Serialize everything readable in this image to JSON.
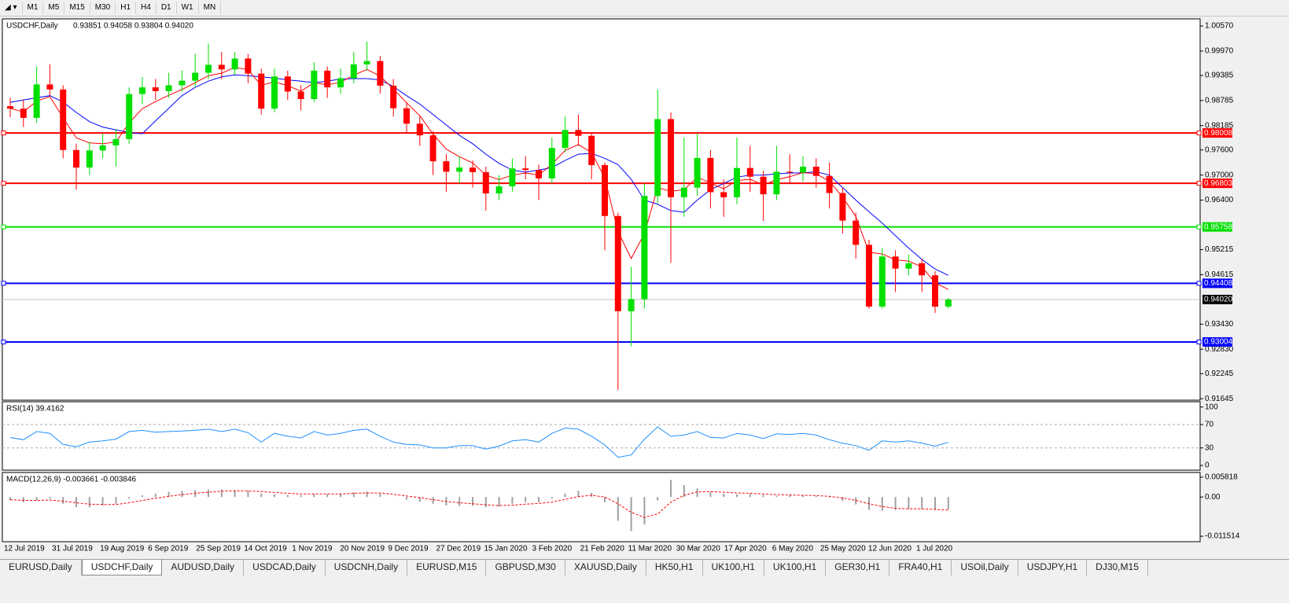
{
  "toolbar": {
    "timeframes": [
      "M1",
      "M5",
      "M15",
      "M30",
      "H1",
      "H4",
      "D1",
      "W1",
      "MN"
    ]
  },
  "chart_data": [
    {
      "type": "candlestick",
      "title": "USDCHF,Daily",
      "ohlc_text": "0.93851 0.94058 0.93804 0.94020",
      "up_color": "#00e000",
      "down_color": "#ff0000",
      "ylim": [
        0.9161,
        1.0074
      ],
      "yticks": [
        {
          "value": 1.0057,
          "label": "1.00570"
        },
        {
          "value": 0.9997,
          "label": "0.99970"
        },
        0.99385,
        0.98785,
        0.98185,
        {
          "value": 0.976,
          "label": "0.97600"
        },
        {
          "value": 0.97,
          "label": "0.97000"
        },
        {
          "value": 0.964,
          "label": "0.96400"
        },
        0.95215,
        0.94615,
        {
          "value": 0.9343,
          "label": "0.93430"
        },
        {
          "value": 0.9283,
          "label": "0.92830"
        },
        0.92245,
        0.91645
      ],
      "candles": [
        [
          0.9865,
          0.9885,
          0.9839,
          0.9859
        ],
        [
          0.9859,
          0.988,
          0.9815,
          0.9837
        ],
        [
          0.9837,
          0.996,
          0.9825,
          0.9917
        ],
        [
          0.9917,
          0.9965,
          0.989,
          0.9905
        ],
        [
          0.9905,
          0.9915,
          0.974,
          0.976
        ],
        [
          0.976,
          0.9775,
          0.9665,
          0.9718
        ],
        [
          0.9718,
          0.978,
          0.97,
          0.9759
        ],
        [
          0.9759,
          0.98,
          0.974,
          0.9771
        ],
        [
          0.9771,
          0.981,
          0.972,
          0.9786
        ],
        [
          0.9786,
          0.991,
          0.9775,
          0.9894
        ],
        [
          0.9894,
          0.9935,
          0.987,
          0.991
        ],
        [
          0.991,
          0.993,
          0.988,
          0.9901
        ],
        [
          0.9901,
          0.9945,
          0.9885,
          0.9915
        ],
        [
          0.9915,
          0.995,
          0.99,
          0.9926
        ],
        [
          0.9926,
          0.999,
          0.991,
          0.9945
        ],
        [
          0.9945,
          1.0015,
          0.993,
          0.9964
        ],
        [
          0.9964,
          0.9995,
          0.993,
          0.9953
        ],
        [
          0.9953,
          0.9995,
          0.994,
          0.9979
        ],
        [
          0.9979,
          0.999,
          0.992,
          0.9943
        ],
        [
          0.9943,
          0.9955,
          0.9845,
          0.9859
        ],
        [
          0.9859,
          0.9955,
          0.985,
          0.9936
        ],
        [
          0.9936,
          0.995,
          0.988,
          0.99
        ],
        [
          0.99,
          0.9915,
          0.9855,
          0.9882
        ],
        [
          0.9882,
          0.997,
          0.9875,
          0.995
        ],
        [
          0.995,
          0.996,
          0.9885,
          0.991
        ],
        [
          0.991,
          0.9955,
          0.9895,
          0.9932
        ],
        [
          0.9932,
          0.9995,
          0.992,
          0.9965
        ],
        [
          0.9965,
          1.002,
          0.995,
          0.9973
        ],
        [
          0.9973,
          0.9985,
          0.9895,
          0.9914
        ],
        [
          0.9914,
          0.993,
          0.984,
          0.986
        ],
        [
          0.986,
          0.9875,
          0.98,
          0.9823
        ],
        [
          0.9823,
          0.984,
          0.977,
          0.9795
        ],
        [
          0.9795,
          0.9805,
          0.97,
          0.9733
        ],
        [
          0.9733,
          0.975,
          0.966,
          0.9708
        ],
        [
          0.9708,
          0.9745,
          0.968,
          0.9718
        ],
        [
          0.9718,
          0.9735,
          0.967,
          0.9707
        ],
        [
          0.9707,
          0.972,
          0.9615,
          0.9656
        ],
        [
          0.9656,
          0.97,
          0.964,
          0.9673
        ],
        [
          0.9673,
          0.974,
          0.966,
          0.9716
        ],
        [
          0.9716,
          0.9745,
          0.969,
          0.9712
        ],
        [
          0.9712,
          0.9725,
          0.964,
          0.9692
        ],
        [
          0.9692,
          0.979,
          0.968,
          0.9765
        ],
        [
          0.9765,
          0.984,
          0.9755,
          0.9808
        ],
        [
          0.9808,
          0.9845,
          0.977,
          0.9794
        ],
        [
          0.9794,
          0.98,
          0.969,
          0.9724
        ],
        [
          0.9724,
          0.973,
          0.952,
          0.9602
        ],
        [
          0.9602,
          0.961,
          0.9185,
          0.9374
        ],
        [
          0.9374,
          0.948,
          0.929,
          0.9403
        ],
        [
          0.9403,
          0.968,
          0.938,
          0.965
        ],
        [
          0.965,
          0.9905,
          0.963,
          0.9834
        ],
        [
          0.9834,
          0.985,
          0.949,
          0.9647
        ],
        [
          0.9647,
          0.979,
          0.96,
          0.967
        ],
        [
          0.967,
          0.98,
          0.965,
          0.9741
        ],
        [
          0.9741,
          0.976,
          0.962,
          0.9659
        ],
        [
          0.9659,
          0.969,
          0.96,
          0.9647
        ],
        [
          0.9647,
          0.979,
          0.963,
          0.9717
        ],
        [
          0.9717,
          0.977,
          0.966,
          0.9696
        ],
        [
          0.9696,
          0.971,
          0.959,
          0.9654
        ],
        [
          0.9654,
          0.977,
          0.964,
          0.9708
        ],
        [
          0.9708,
          0.975,
          0.968,
          0.9706
        ],
        [
          0.9706,
          0.9745,
          0.9685,
          0.972
        ],
        [
          0.972,
          0.974,
          0.967,
          0.9698
        ],
        [
          0.9698,
          0.973,
          0.962,
          0.9657
        ],
        [
          0.9657,
          0.967,
          0.956,
          0.9591
        ],
        [
          0.9591,
          0.961,
          0.95,
          0.9533
        ],
        [
          0.9533,
          0.9545,
          0.938,
          0.9385
        ],
        [
          0.9385,
          0.9525,
          0.938,
          0.9505
        ],
        [
          0.9505,
          0.952,
          0.942,
          0.9476
        ],
        [
          0.9476,
          0.951,
          0.946,
          0.9489
        ],
        [
          0.9489,
          0.95,
          0.942,
          0.946
        ],
        [
          0.946,
          0.947,
          0.937,
          0.9385
        ],
        [
          0.93851,
          0.94058,
          0.93804,
          0.9402
        ]
      ],
      "series": [
        {
          "color": "#0000ff",
          "values": [
            0.9874,
            0.988,
            0.9885,
            0.989,
            0.9875,
            0.985,
            0.9828,
            0.9815,
            0.9808,
            0.9802,
            0.9799,
            0.983,
            0.986,
            0.989,
            0.991,
            0.9925,
            0.9935,
            0.994,
            0.9938,
            0.9935,
            0.9932,
            0.9928,
            0.9925,
            0.9921,
            0.9925,
            0.993,
            0.9931,
            0.9931,
            0.9928,
            0.9912,
            0.989,
            0.987,
            0.9845,
            0.982,
            0.9795,
            0.9775,
            0.975,
            0.9728,
            0.9712,
            0.9707,
            0.9712,
            0.9718,
            0.9735,
            0.975,
            0.9752,
            0.974,
            0.9725,
            0.969,
            0.964,
            0.963,
            0.9615,
            0.9611,
            0.964,
            0.9665,
            0.968,
            0.9695,
            0.97,
            0.97,
            0.9703,
            0.9705,
            0.9705,
            0.9708,
            0.97,
            0.967,
            0.964,
            0.9612,
            0.9585,
            0.9555,
            0.9525,
            0.9498,
            0.9475,
            0.946
          ]
        },
        {
          "color": "#ff0000",
          "values": [
            0.986,
            0.9851,
            0.9877,
            0.9888,
            0.9837,
            0.9789,
            0.9777,
            0.9775,
            0.9779,
            0.9825,
            0.9859,
            0.9876,
            0.9891,
            0.9905,
            0.9921,
            0.9938,
            0.9944,
            0.9958,
            0.9952,
            0.9915,
            0.9923,
            0.9914,
            0.9901,
            0.9921,
            0.9916,
            0.9922,
            0.9939,
            0.9953,
            0.9937,
            0.9906,
            0.9873,
            0.9842,
            0.9798,
            0.9762,
            0.9744,
            0.9729,
            0.97,
            0.9689,
            0.97,
            0.9705,
            0.97,
            0.9726,
            0.9759,
            0.9773,
            0.9754,
            0.9693,
            0.9565,
            0.95,
            0.956,
            0.967,
            0.9661,
            0.9665,
            0.9695,
            0.9681,
            0.9667,
            0.9687,
            0.969,
            0.9676,
            0.9689,
            0.9696,
            0.9706,
            0.9703,
            0.9685,
            0.9647,
            0.9601,
            0.9515,
            0.9511,
            0.9497,
            0.9494,
            0.948,
            0.9442,
            0.9426
          ]
        }
      ],
      "levels": [
        {
          "value": 0.98008,
          "color": "#ff0000"
        },
        {
          "value": 0.96803,
          "color": "#ff0000"
        },
        {
          "value": 0.95758,
          "color": "#00e000"
        },
        {
          "value": 0.94408,
          "color": "#0000ff"
        },
        {
          "value": 0.93004,
          "color": "#0000ff"
        }
      ],
      "last_price": {
        "value": 0.9402,
        "label": "0.94020"
      },
      "date_labels": [
        "12 Jul 2019",
        "31 Jul 2019",
        "19 Aug 2019",
        "6 Sep 2019",
        "25 Sep 2019",
        "14 Oct 2019",
        "1 Nov 2019",
        "20 Nov 2019",
        "9 Dec 2019",
        "27 Dec 2019",
        "15 Jan 2020",
        "3 Feb 2020",
        "21 Feb 2020",
        "11 Mar 2020",
        "30 Mar 2020",
        "17 Apr 2020",
        "6 May 2020",
        "25 May 2020",
        "12 Jun 2020",
        "1 Jul 2020"
      ]
    },
    {
      "type": "line",
      "title": "RSI(14) 39.4162",
      "color": "#1e90ff",
      "ylim": [
        -8,
        109
      ],
      "yticks": [
        100,
        70,
        30,
        0
      ],
      "levels": [
        70,
        30
      ],
      "values": [
        48,
        44,
        58,
        55,
        36,
        32,
        40,
        42,
        45,
        58,
        60,
        57,
        58,
        59,
        60,
        62,
        58,
        62,
        56,
        40,
        55,
        50,
        47,
        58,
        52,
        55,
        60,
        62,
        50,
        40,
        36,
        35,
        30,
        30,
        34,
        34,
        28,
        33,
        42,
        44,
        40,
        55,
        64,
        62,
        50,
        35,
        14,
        18,
        45,
        66,
        50,
        52,
        58,
        48,
        47,
        55,
        52,
        46,
        54,
        53,
        55,
        52,
        44,
        38,
        34,
        26,
        42,
        40,
        42,
        38,
        33,
        39.4162
      ]
    },
    {
      "type": "macd",
      "title": "MACD(12,26,9) -0.003661 -0.003846",
      "hist_color": "#a0a0a0",
      "signal_color": "#ff0000",
      "ylim": [
        -0.01311,
        0.00719
      ],
      "yticks": [
        0.005818,
        {
          "value": 0,
          "label": "0.00"
        },
        -0.011514
      ],
      "values": [
        -0.001,
        -0.0015,
        -0.001,
        -0.0005,
        -0.002,
        -0.003,
        -0.003,
        -0.0025,
        -0.002,
        -0.0005,
        0.0005,
        0.001,
        0.0015,
        0.0018,
        0.002,
        0.0022,
        0.0022,
        0.002,
        0.0018,
        0.001,
        0.0008,
        0.0006,
        0.0005,
        0.0008,
        0.0008,
        0.001,
        0.0014,
        0.0016,
        0.001,
        0,
        -0.0008,
        -0.0014,
        -0.002,
        -0.0025,
        -0.0026,
        -0.0026,
        -0.003,
        -0.0028,
        -0.002,
        -0.0016,
        -0.0015,
        -0.0005,
        0.001,
        0.0018,
        0.0012,
        -0.0015,
        -0.007,
        -0.01,
        -0.008,
        -0.001,
        0.005,
        0.0035,
        0.0025,
        0.0015,
        0.001,
        0.0008,
        0.001,
        0.0006,
        0.0004,
        0.0005,
        0.0004,
        0.0003,
        -0.0002,
        -0.0012,
        -0.0022,
        -0.0038,
        -0.004,
        -0.0038,
        -0.0035,
        -0.0035,
        -0.0038,
        -0.003661
      ],
      "signal": [
        -0.0008,
        -0.001,
        -0.001,
        -0.0009,
        -0.0012,
        -0.0017,
        -0.0021,
        -0.0022,
        -0.0022,
        -0.0017,
        -0.001,
        -0.0004,
        0.0002,
        0.0007,
        0.0011,
        0.0014,
        0.0017,
        0.0018,
        0.0018,
        0.0016,
        0.0013,
        0.0011,
        0.0009,
        0.0009,
        0.0009,
        0.0009,
        0.0011,
        0.0012,
        0.0012,
        0.0008,
        0.0003,
        -0.0002,
        -0.0008,
        -0.0013,
        -0.0017,
        -0.002,
        -0.0023,
        -0.0025,
        -0.0024,
        -0.0021,
        -0.0019,
        -0.0015,
        -0.0007,
        0.0001,
        0.0005,
        0,
        -0.002,
        -0.0045,
        -0.006,
        -0.005,
        -0.0015,
        0.0005,
        0.0015,
        0.0016,
        0.0014,
        0.0012,
        0.0011,
        0.0009,
        0.0007,
        0.0006,
        0.0005,
        0.0004,
        0.0002,
        -0.0003,
        -0.001,
        -0.002,
        -0.0028,
        -0.0033,
        -0.0035,
        -0.0035,
        -0.0036,
        -0.003846
      ]
    }
  ],
  "tabs": {
    "active": 1,
    "items": [
      "EURUSD,Daily",
      "USDCHF,Daily",
      "AUDUSD,Daily",
      "USDCAD,Daily",
      "USDCNH,Daily",
      "EURUSD,M15",
      "GBPUSD,M30",
      "XAUUSD,Daily",
      "HK50,H1",
      "UK100,H1",
      "UK100,H1",
      "GER30,H1",
      "FRA40,H1",
      "USOil,Daily",
      "USDJPY,H1",
      "DJ30,M15"
    ]
  }
}
